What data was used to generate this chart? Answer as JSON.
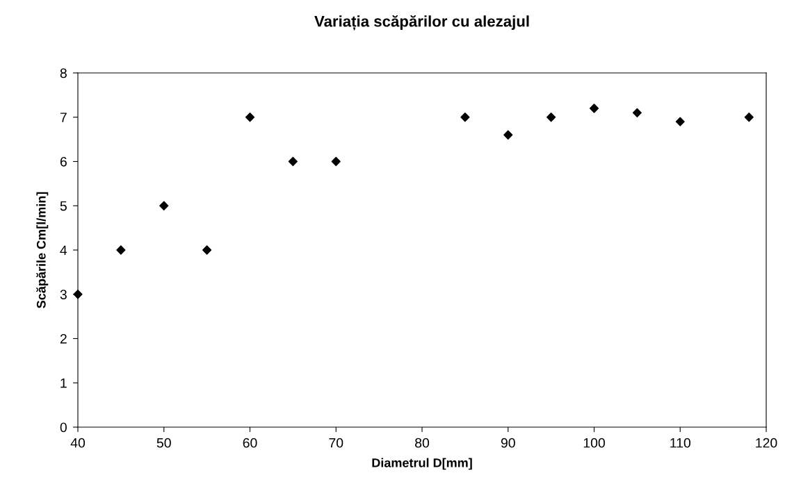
{
  "chart_data": {
    "type": "scatter",
    "title": "Variația scăpărilor cu alezajul",
    "xlabel": "Diametrul D[mm]",
    "ylabel": "Scăpările Cm[l/min]",
    "x": [
      40,
      45,
      50,
      55,
      60,
      65,
      70,
      85,
      90,
      95,
      100,
      105,
      110,
      118
    ],
    "series": [
      {
        "color": "#000000",
        "values": [
          3,
          4,
          5,
          4,
          7,
          6,
          6,
          7,
          6.6,
          7,
          7.2,
          7.1,
          6.9,
          7
        ]
      }
    ],
    "xlim": [
      40,
      120
    ],
    "xticks": [
      40,
      50,
      60,
      70,
      80,
      90,
      100,
      110,
      120
    ],
    "ylim": [
      0,
      8
    ],
    "yticks": [
      0,
      1,
      2,
      3,
      4,
      5,
      6,
      7,
      8
    ],
    "grid": false,
    "legend": false,
    "marker": "diamond"
  }
}
